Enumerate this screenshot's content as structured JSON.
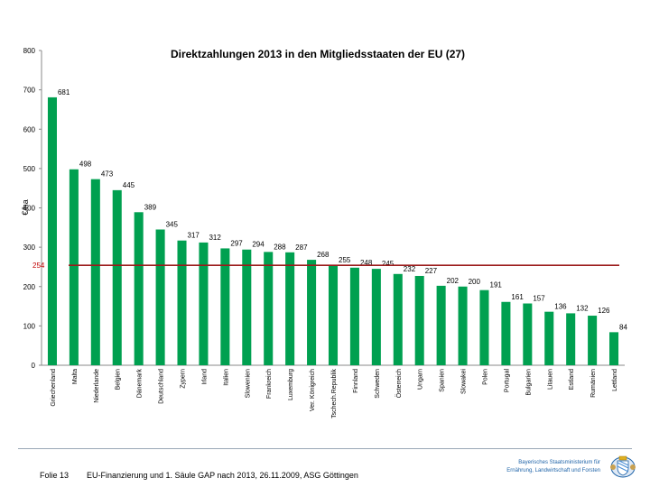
{
  "chart_data": {
    "type": "bar",
    "title": "Direktzahlungen 2013 in den Mitgliedsstaaten der EU (27)",
    "ylabel": "€/ha",
    "xlabel": "",
    "ylim": [
      0,
      800
    ],
    "yticks": [
      0,
      100,
      200,
      300,
      400,
      500,
      600,
      700,
      800
    ],
    "grid": false,
    "legend": "none",
    "categories": [
      "Griechenland",
      "Malta",
      "Niederlande",
      "Belgien",
      "Dänemark",
      "Deutschland",
      "Zypern",
      "Irland",
      "Italien",
      "Slowenien",
      "Frankreich",
      "Luxemburg",
      "Ver. Königreich",
      "Tschech.Republik",
      "Finnland",
      "Schweden",
      "Österreich",
      "Ungarn",
      "Spanien",
      "Slowakei",
      "Polen",
      "Portugal",
      "Bulgarien",
      "Litauen",
      "Estland",
      "Rumänien",
      "Lettland"
    ],
    "values": [
      681,
      498,
      473,
      445,
      389,
      345,
      317,
      312,
      297,
      294,
      288,
      287,
      268,
      255,
      248,
      245,
      232,
      227,
      202,
      200,
      191,
      161,
      157,
      136,
      132,
      126,
      84
    ],
    "value_labels": [
      "681",
      "498",
      "473",
      "445",
      "389",
      "345",
      "317",
      "312",
      "297",
      "294",
      "288",
      "287",
      "268",
      "255",
      "248",
      "245",
      "232",
      "227",
      "202",
      "200",
      "191",
      "161",
      "157",
      "136",
      "132",
      "126",
      "84"
    ],
    "reference_line": {
      "value": 254,
      "label": "254"
    },
    "colors": {
      "bar": "#00a050",
      "reference_line": "#9b1b1b",
      "reference_label": "#c00000"
    }
  },
  "footer": {
    "slide": "Folie 13",
    "text": "EU-Finanzierung und 1. Säule GAP nach 2013, 26.11.2009, ASG Göttingen",
    "ministry_line1": "Bayerisches Staatsministerium für",
    "ministry_line2": "Ernährung, Landwirtschaft und Forsten",
    "seal_icon": "bavarian-coat-of-arms-icon"
  }
}
